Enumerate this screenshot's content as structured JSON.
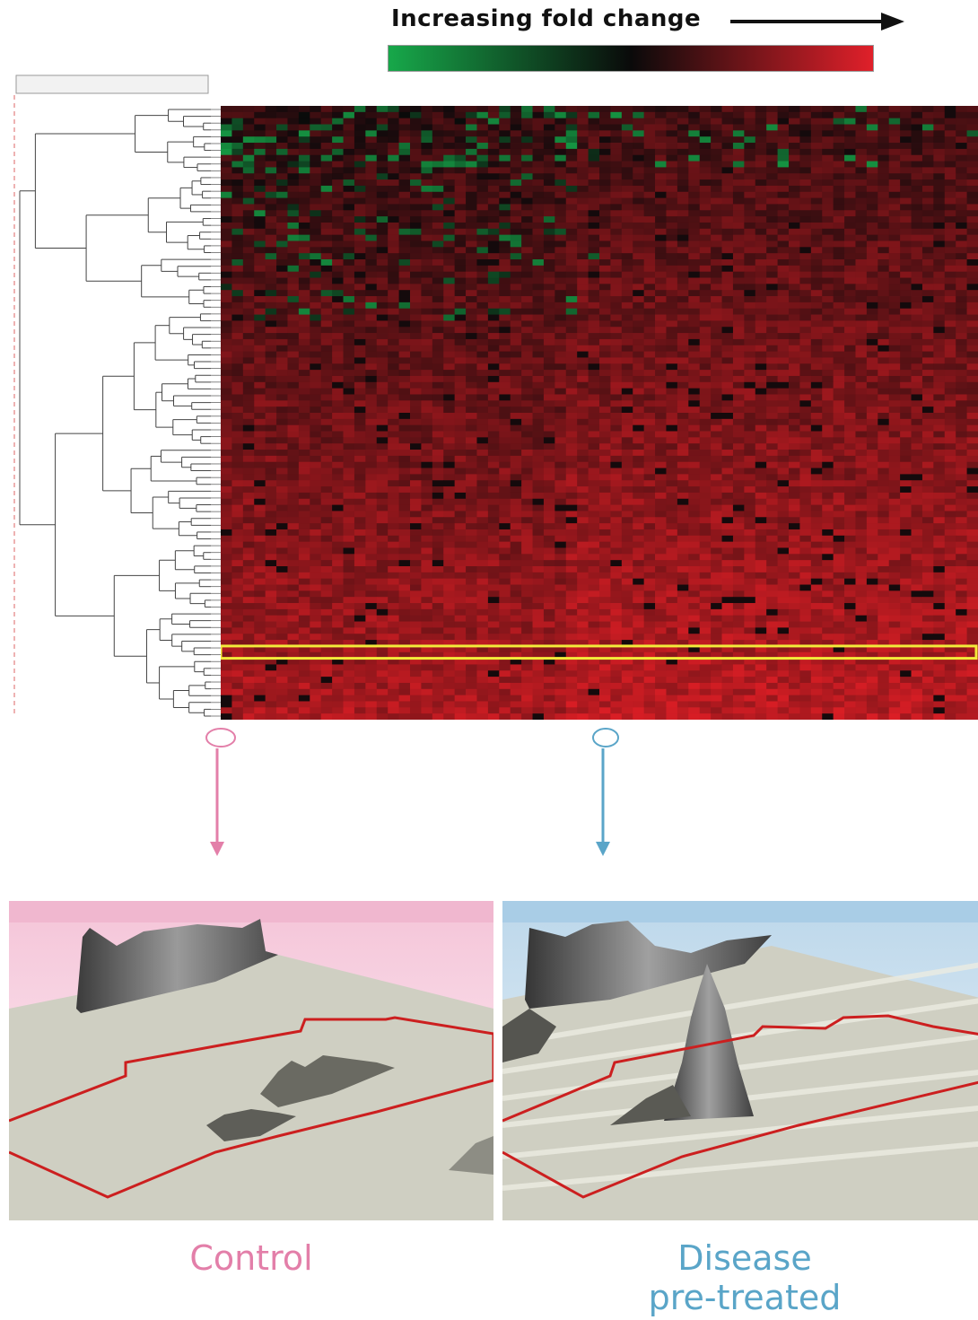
{
  "legend": {
    "title": "Increasing fold change",
    "low_color": "#17a84a",
    "mid_color": "#0a0a0a",
    "high_color": "#e0202a"
  },
  "colors": {
    "control": "#e37fa9",
    "disease": "#5aa5c8",
    "highlight": "#f2ea3a",
    "outline": "#cc1f1f"
  },
  "chart_data": {
    "type": "heatmap",
    "rows": 100,
    "columns": 68,
    "color_scale": [
      "green",
      "black",
      "red"
    ],
    "highlighted_row_index": 88,
    "selected_columns": [
      {
        "index": 0,
        "group": "control"
      },
      {
        "index": 34,
        "group": "disease"
      }
    ]
  },
  "panels": {
    "control": {
      "label": "Control"
    },
    "disease": {
      "label_line1": "Disease",
      "label_line2": "pre-treated"
    }
  }
}
